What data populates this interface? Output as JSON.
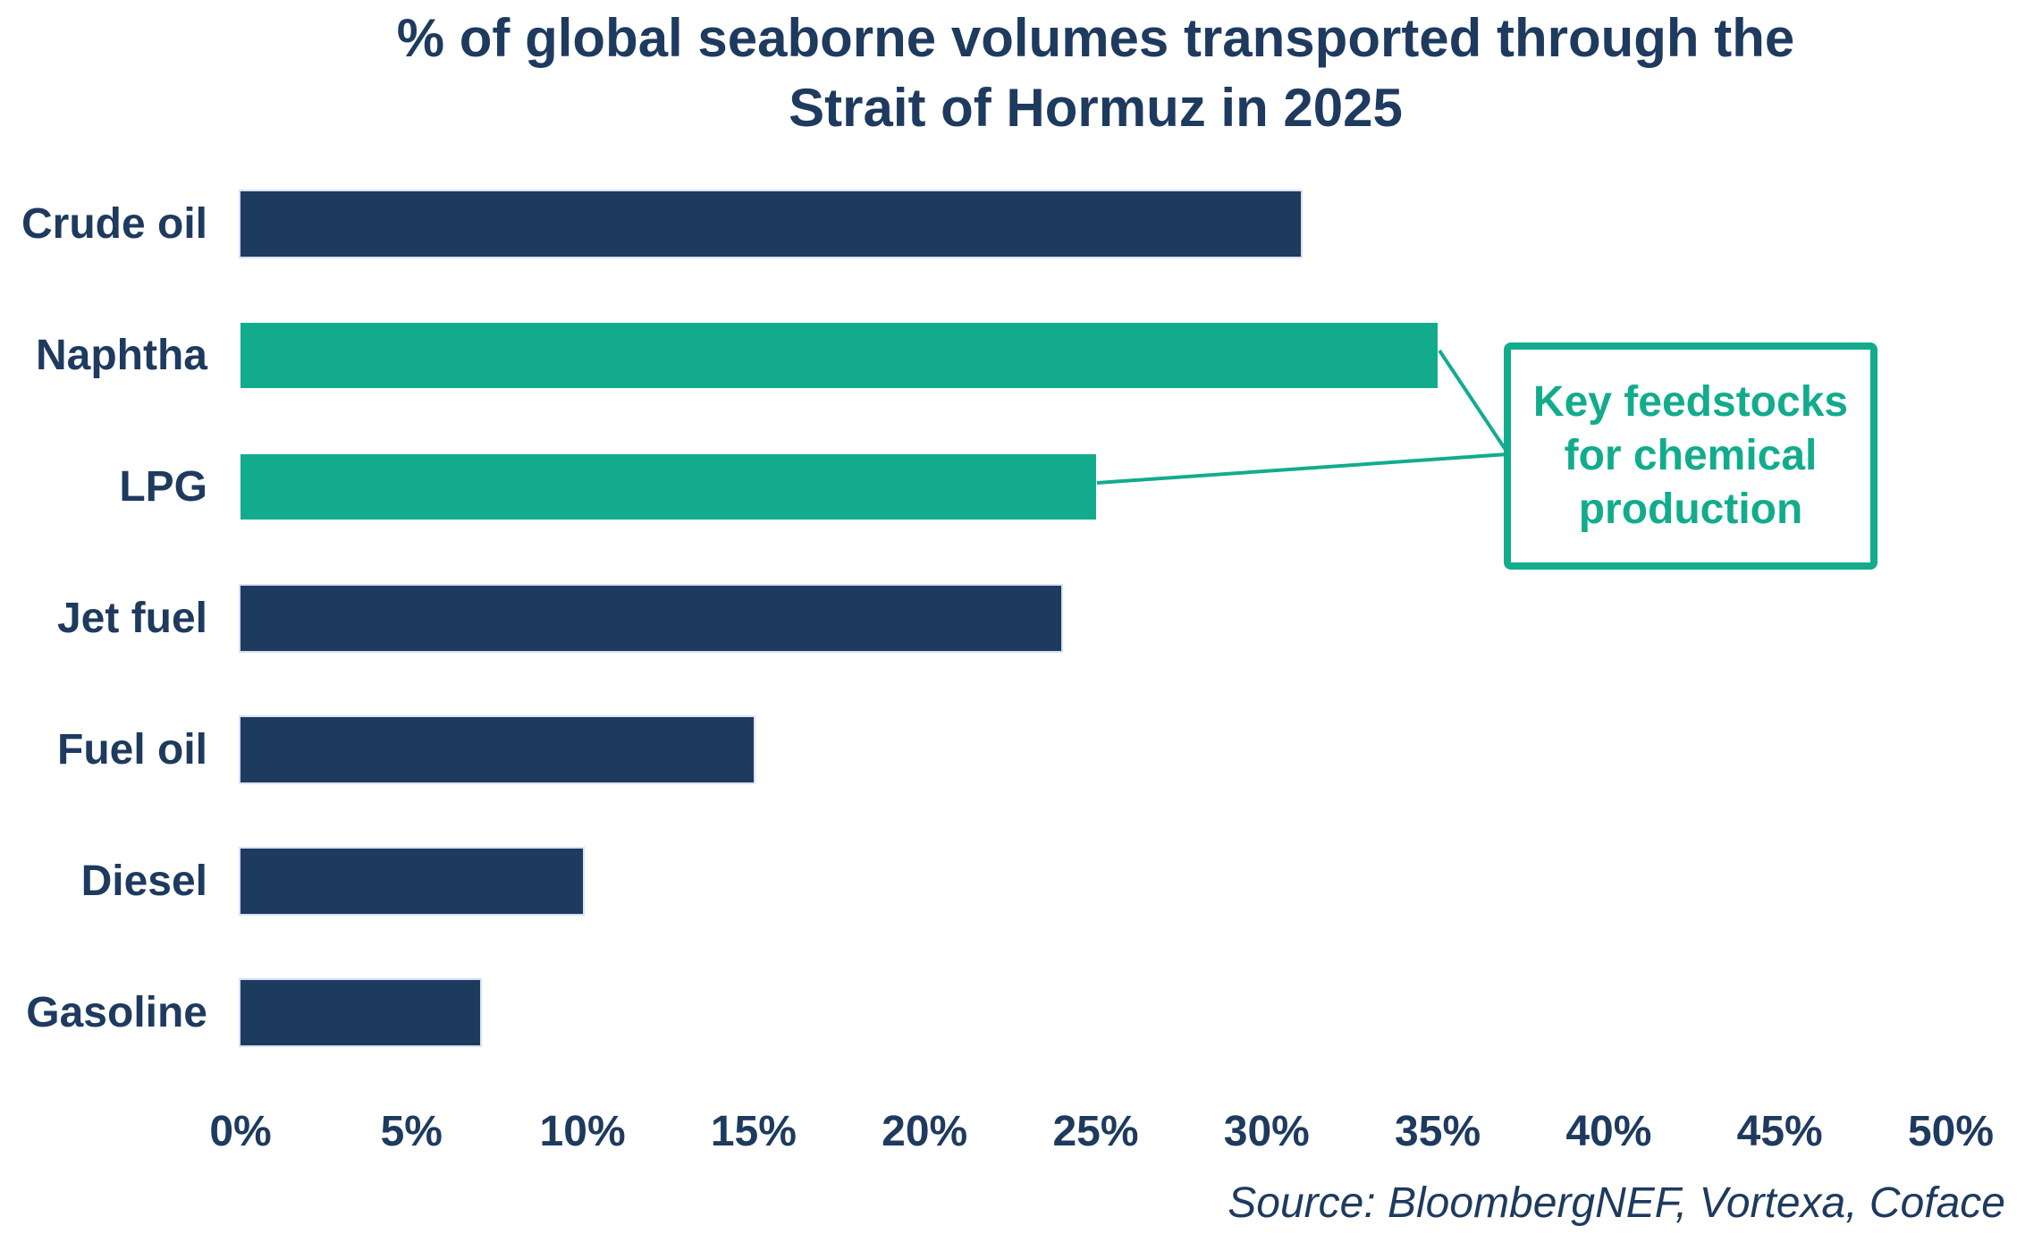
{
  "title": {
    "line1": "% of global seaborne volumes transported through the",
    "line2": "Strait of Hormuz in 2025"
  },
  "annotation": {
    "text": "Key feedstocks for chemical production"
  },
  "source": "Source: BloombergNEF, Vortexa, Coface",
  "colors": {
    "navy": "#1E3A5F",
    "teal": "#12AC8D",
    "bar_outline": "#D6E2F3",
    "background": "#FFFFFF"
  },
  "chart_data": {
    "type": "bar",
    "orientation": "horizontal",
    "title": "% of global seaborne volumes transported through the Strait of Hormuz in 2025",
    "categories": [
      "Crude oil",
      "Naphtha",
      "LPG",
      "Jet fuel",
      "Fuel oil",
      "Diesel",
      "Gasoline"
    ],
    "values": [
      31,
      35,
      25,
      24,
      15,
      10,
      7
    ],
    "unit": "%",
    "highlighted_categories": [
      "Naphtha",
      "LPG"
    ],
    "highlight_annotation": "Key feedstocks for chemical production",
    "xlabel": "",
    "ylabel": "",
    "xlim": [
      0,
      50
    ],
    "xticks": [
      0,
      5,
      10,
      15,
      20,
      25,
      30,
      35,
      40,
      45,
      50
    ],
    "xtick_labels": [
      "0%",
      "5%",
      "10%",
      "15%",
      "20%",
      "25%",
      "30%",
      "35%",
      "40%",
      "45%",
      "50%"
    ],
    "grid": false,
    "legend": false,
    "source": "Source: BloombergNEF, Vortexa, Coface"
  }
}
